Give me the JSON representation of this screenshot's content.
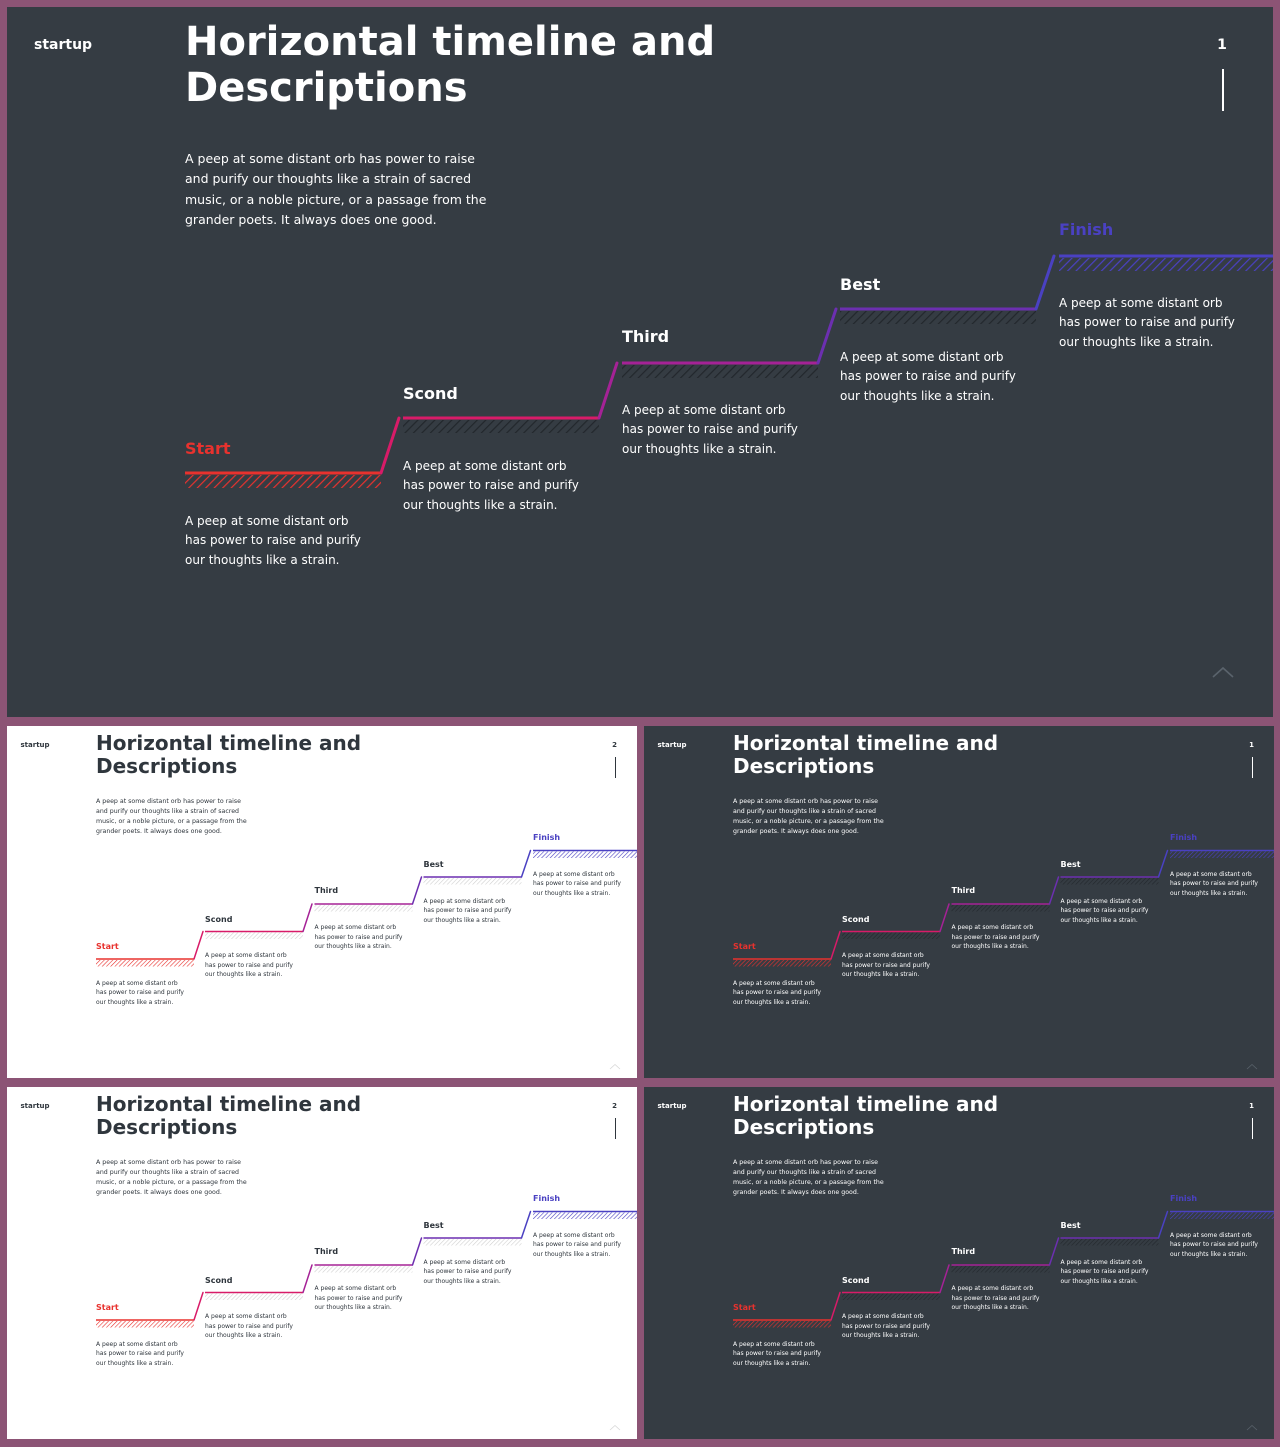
{
  "brand": "startup",
  "title_line1": "Horizontal timeline and",
  "title_line2": "Descriptions",
  "intro": "A peep at some distant orb has power to raise and purify our thoughts like a strain of sacred music, or a noble picture, or a passage from the grander poets. It always does one good.",
  "steps": [
    {
      "label": "Start",
      "desc": "A peep at some distant orb has power to raise and purify our thoughts like a strain.",
      "color": "#e8322e"
    },
    {
      "label": "Scond",
      "desc": "A peep at some distant orb has power to raise and purify our thoughts like a strain.",
      "color": "#d81b68"
    },
    {
      "label": "Third",
      "desc": "A peep at some distant orb has power to raise and purify our thoughts like a strain.",
      "color": "#a52296"
    },
    {
      "label": "Best",
      "desc": "A peep at some distant orb has power to raise and purify our thoughts like a strain.",
      "color": "#6c2fb0"
    },
    {
      "label": "Finish",
      "desc": "A peep at some distant orb has power to raise and purify our thoughts like a strain.",
      "color": "#4a41c2"
    }
  ],
  "slides": [
    {
      "id": "main",
      "theme": "dark",
      "page_number": "1"
    },
    {
      "id": "thumb-1",
      "theme": "light",
      "page_number": "2"
    },
    {
      "id": "thumb-2",
      "theme": "dark",
      "page_number": "1"
    },
    {
      "id": "thumb-3",
      "theme": "light",
      "page_number": "2"
    },
    {
      "id": "thumb-4",
      "theme": "dark",
      "page_number": "1"
    }
  ],
  "icons": {
    "chevron": "chevron-up-icon"
  }
}
